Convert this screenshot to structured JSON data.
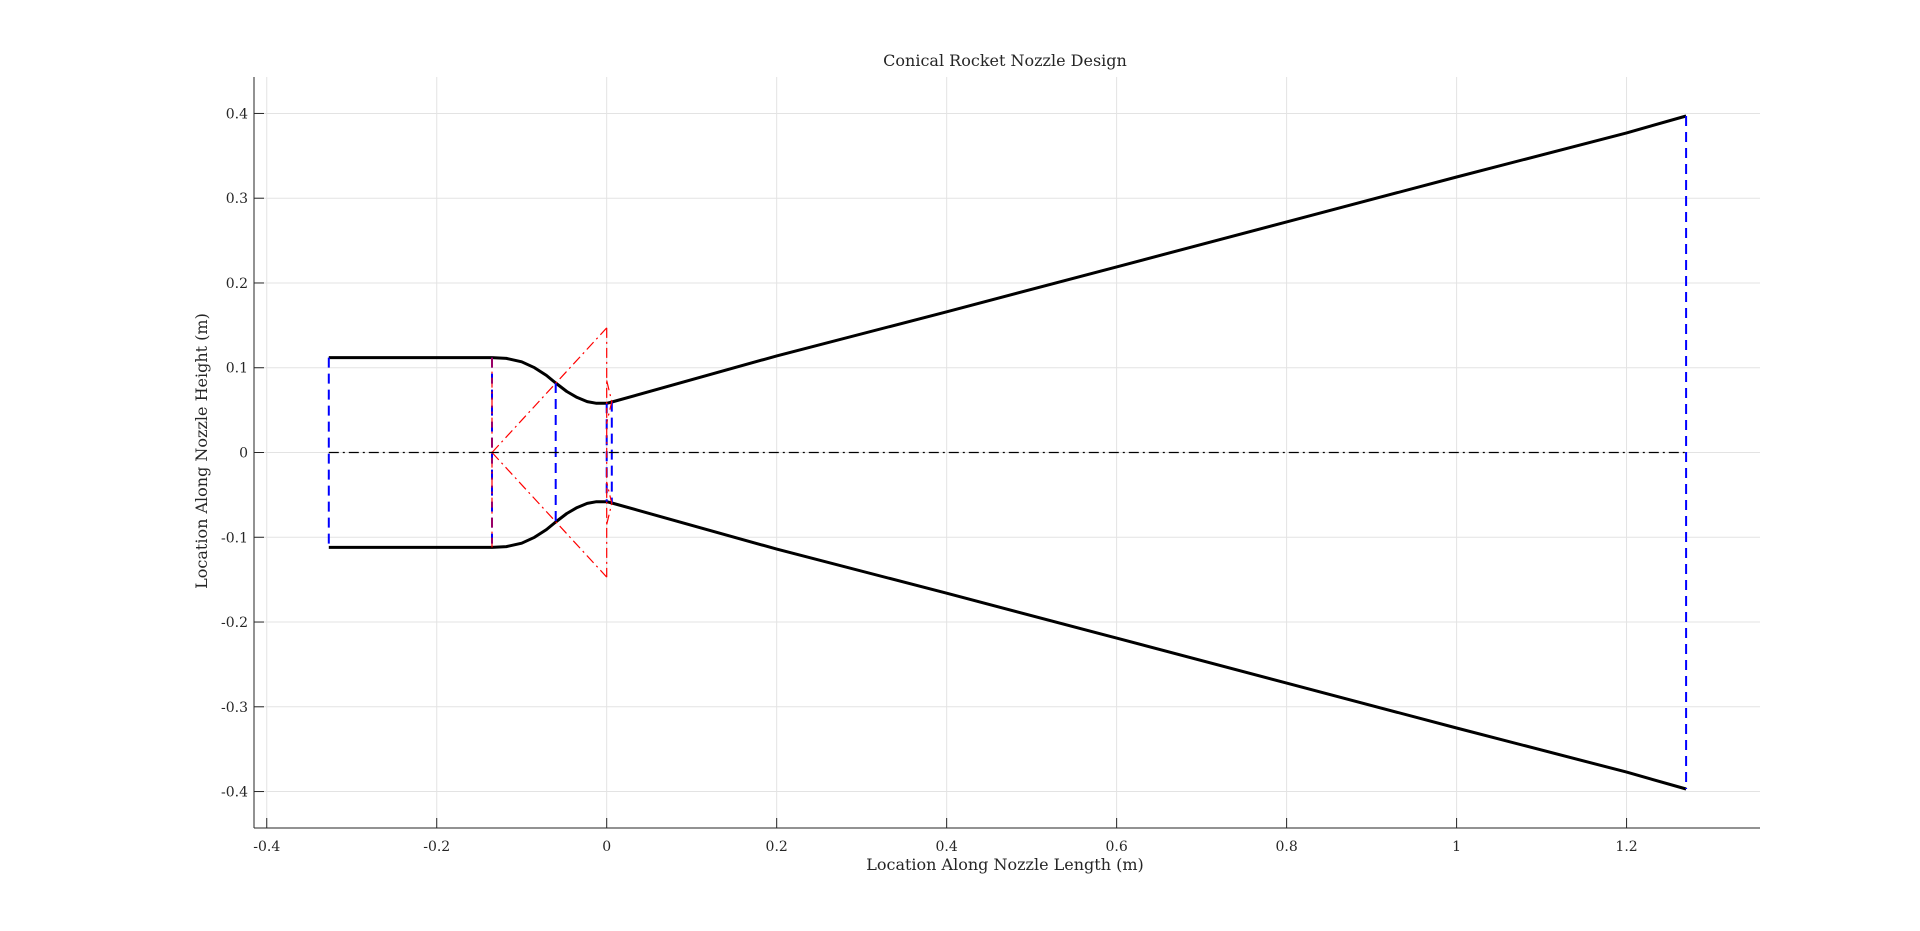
{
  "chart_data": {
    "type": "line",
    "title": "Conical Rocket Nozzle Design",
    "xlabel": "Location Along Nozzle Length (m)",
    "ylabel": "Location Along Nozzle Height (m)",
    "xlim": [
      -0.415,
      1.357
    ],
    "ylim": [
      -0.443,
      0.443
    ],
    "xticks": [
      -0.4,
      -0.2,
      0,
      0.2,
      0.4,
      0.6,
      0.8,
      1,
      1.2
    ],
    "xtick_labels": [
      "-0.4",
      "-0.2",
      "0",
      "0.2",
      "0.4",
      "0.6",
      "0.8",
      "1",
      "1.2"
    ],
    "yticks": [
      -0.4,
      -0.3,
      -0.2,
      -0.1,
      0,
      0.1,
      0.2,
      0.3,
      0.4
    ],
    "ytick_labels": [
      "-0.4",
      "-0.3",
      "-0.2",
      "-0.1",
      "0",
      "0.1",
      "0.2",
      "0.3",
      "0.4"
    ],
    "grid": true,
    "colors": {
      "contour": "#000000",
      "section_lines": "#0000ff",
      "construction_lines": "#ff0000",
      "centerline": "#000000",
      "grid": "#e3e3e3",
      "axis": "#262626"
    },
    "series": [
      {
        "style": "solid-black-thick",
        "x": [
          -0.327,
          -0.135,
          -0.118,
          -0.1,
          -0.085,
          -0.071,
          -0.06,
          -0.047,
          -0.035,
          -0.023,
          -0.012,
          0,
          0.004,
          0.2,
          0.4,
          0.6,
          0.8,
          1.0,
          1.2,
          1.27
        ],
        "y": [
          0.112,
          0.112,
          0.111,
          0.107,
          0.1,
          0.091,
          0.082,
          0.072,
          0.065,
          0.06,
          0.058,
          0.058,
          0.059,
          0.114,
          0.166,
          0.219,
          0.272,
          0.325,
          0.377,
          0.397
        ]
      },
      {
        "style": "solid-black-thick",
        "x": [
          -0.327,
          -0.135,
          -0.118,
          -0.1,
          -0.085,
          -0.071,
          -0.06,
          -0.047,
          -0.035,
          -0.023,
          -0.012,
          0,
          0.004,
          0.2,
          0.4,
          0.6,
          0.8,
          1.0,
          1.2,
          1.27
        ],
        "y": [
          -0.112,
          -0.112,
          -0.111,
          -0.107,
          -0.1,
          -0.091,
          -0.082,
          -0.072,
          -0.065,
          -0.06,
          -0.058,
          -0.058,
          -0.059,
          -0.114,
          -0.166,
          -0.219,
          -0.272,
          -0.325,
          -0.377,
          -0.397
        ]
      },
      {
        "style": "dashed-blue",
        "x": [
          -0.327,
          -0.327
        ],
        "y": [
          0.112,
          -0.112
        ]
      },
      {
        "style": "dashed-blue",
        "x": [
          -0.135,
          -0.135
        ],
        "y": [
          0.112,
          -0.112
        ]
      },
      {
        "style": "dashed-blue",
        "x": [
          -0.06,
          -0.06
        ],
        "y": [
          0.082,
          -0.082
        ]
      },
      {
        "style": "dashed-blue",
        "x": [
          0,
          0
        ],
        "y": [
          0.058,
          -0.058
        ]
      },
      {
        "style": "dashed-blue",
        "x": [
          0.006,
          0.006
        ],
        "y": [
          0.06,
          -0.06
        ]
      },
      {
        "style": "dashed-blue",
        "x": [
          1.27,
          1.27
        ],
        "y": [
          0.397,
          -0.397
        ]
      },
      {
        "style": "dashdot-red",
        "x": [
          -0.135,
          0
        ],
        "y": [
          0,
          0.147
        ]
      },
      {
        "style": "dashdot-red",
        "x": [
          -0.135,
          0
        ],
        "y": [
          0,
          -0.147
        ]
      },
      {
        "style": "dashdot-red",
        "x": [
          0,
          0
        ],
        "y": [
          0.147,
          -0.147
        ]
      },
      {
        "style": "dashdot-red",
        "x": [
          -0.135,
          -0.135
        ],
        "y": [
          0.112,
          -0.112
        ]
      },
      {
        "style": "dashdot-red",
        "x": [
          0,
          0.006,
          0
        ],
        "y": [
          0.085,
          0.06,
          0.035
        ]
      },
      {
        "style": "dashdot-red",
        "x": [
          0,
          0.006,
          0
        ],
        "y": [
          -0.085,
          -0.06,
          -0.035
        ]
      },
      {
        "style": "dashdot-black",
        "x": [
          -0.327,
          1.27
        ],
        "y": [
          0,
          0
        ]
      }
    ]
  }
}
